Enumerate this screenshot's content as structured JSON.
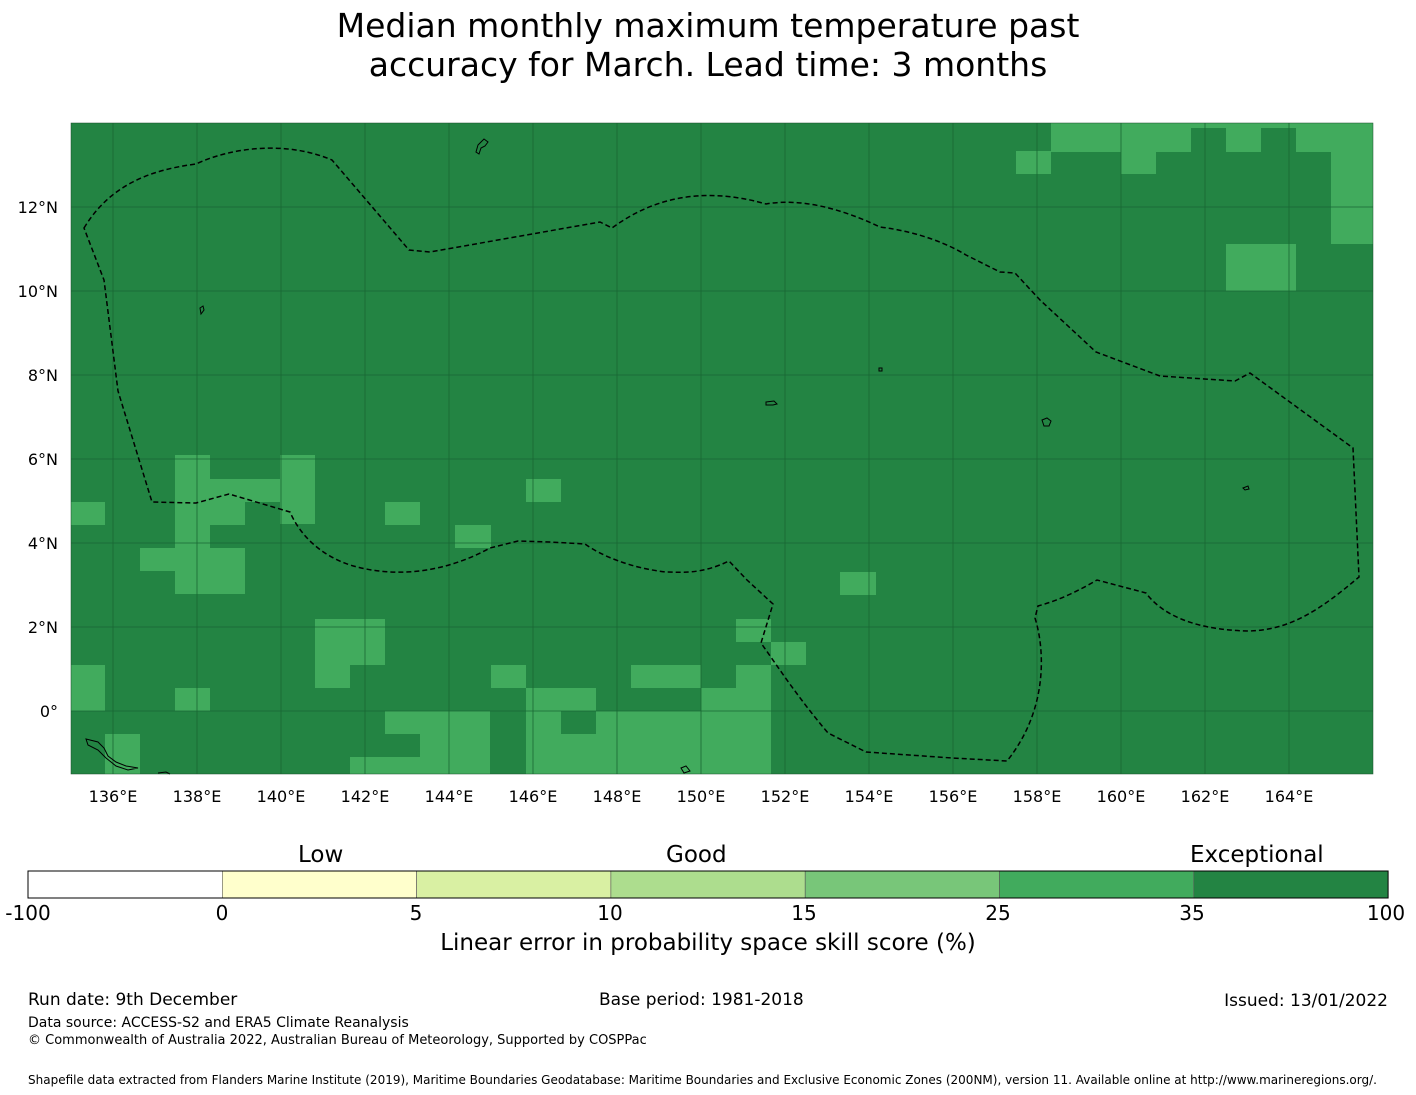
{
  "title": {
    "line1": "Median monthly maximum temperature past",
    "line2": "accuracy for March. Lead time: 3 months"
  },
  "map": {
    "lon_ticks": [
      "136°E",
      "138°E",
      "140°E",
      "142°E",
      "144°E",
      "146°E",
      "148°E",
      "150°E",
      "152°E",
      "154°E",
      "156°E",
      "158°E",
      "160°E",
      "162°E",
      "164°E"
    ],
    "lat_ticks": [
      "12°N",
      "10°N",
      "8°N",
      "6°N",
      "4°N",
      "2°N",
      "0°"
    ],
    "base_color": "#238443",
    "patch_color": "#41ab5d",
    "grid_color": "#1a6634",
    "border_color": "#000000"
  },
  "colorbar": {
    "category_labels": [
      "Low",
      "Good",
      "Exceptional"
    ],
    "tick_labels": [
      "-100",
      "0",
      "5",
      "10",
      "15",
      "25",
      "35",
      "100"
    ],
    "colors": [
      "#ffffff",
      "#ffffcc",
      "#d9f0a3",
      "#addd8e",
      "#78c679",
      "#41ab5d",
      "#238443"
    ],
    "title": "Linear error in probability space skill score (%)"
  },
  "footer": {
    "run_date": "Run date: 9th December",
    "base_period": "Base period: 1981-2018",
    "issued": "Issued: 13/01/2022",
    "data_source": "Data source: ACCESS-S2 and ERA5 Climate Reanalysis",
    "copyright": "© Commonwealth of Australia 2022, Australian Bureau of Meteorology, Supported by COSPPac",
    "shapefile": "Shapefile data extracted from Flanders Marine Institute (2019), Maritime Boundaries Geodatabase: Maritime Boundaries and Exclusive Economic Zones (200NM), version 11. Available online at http://www.marineregions.org/."
  }
}
